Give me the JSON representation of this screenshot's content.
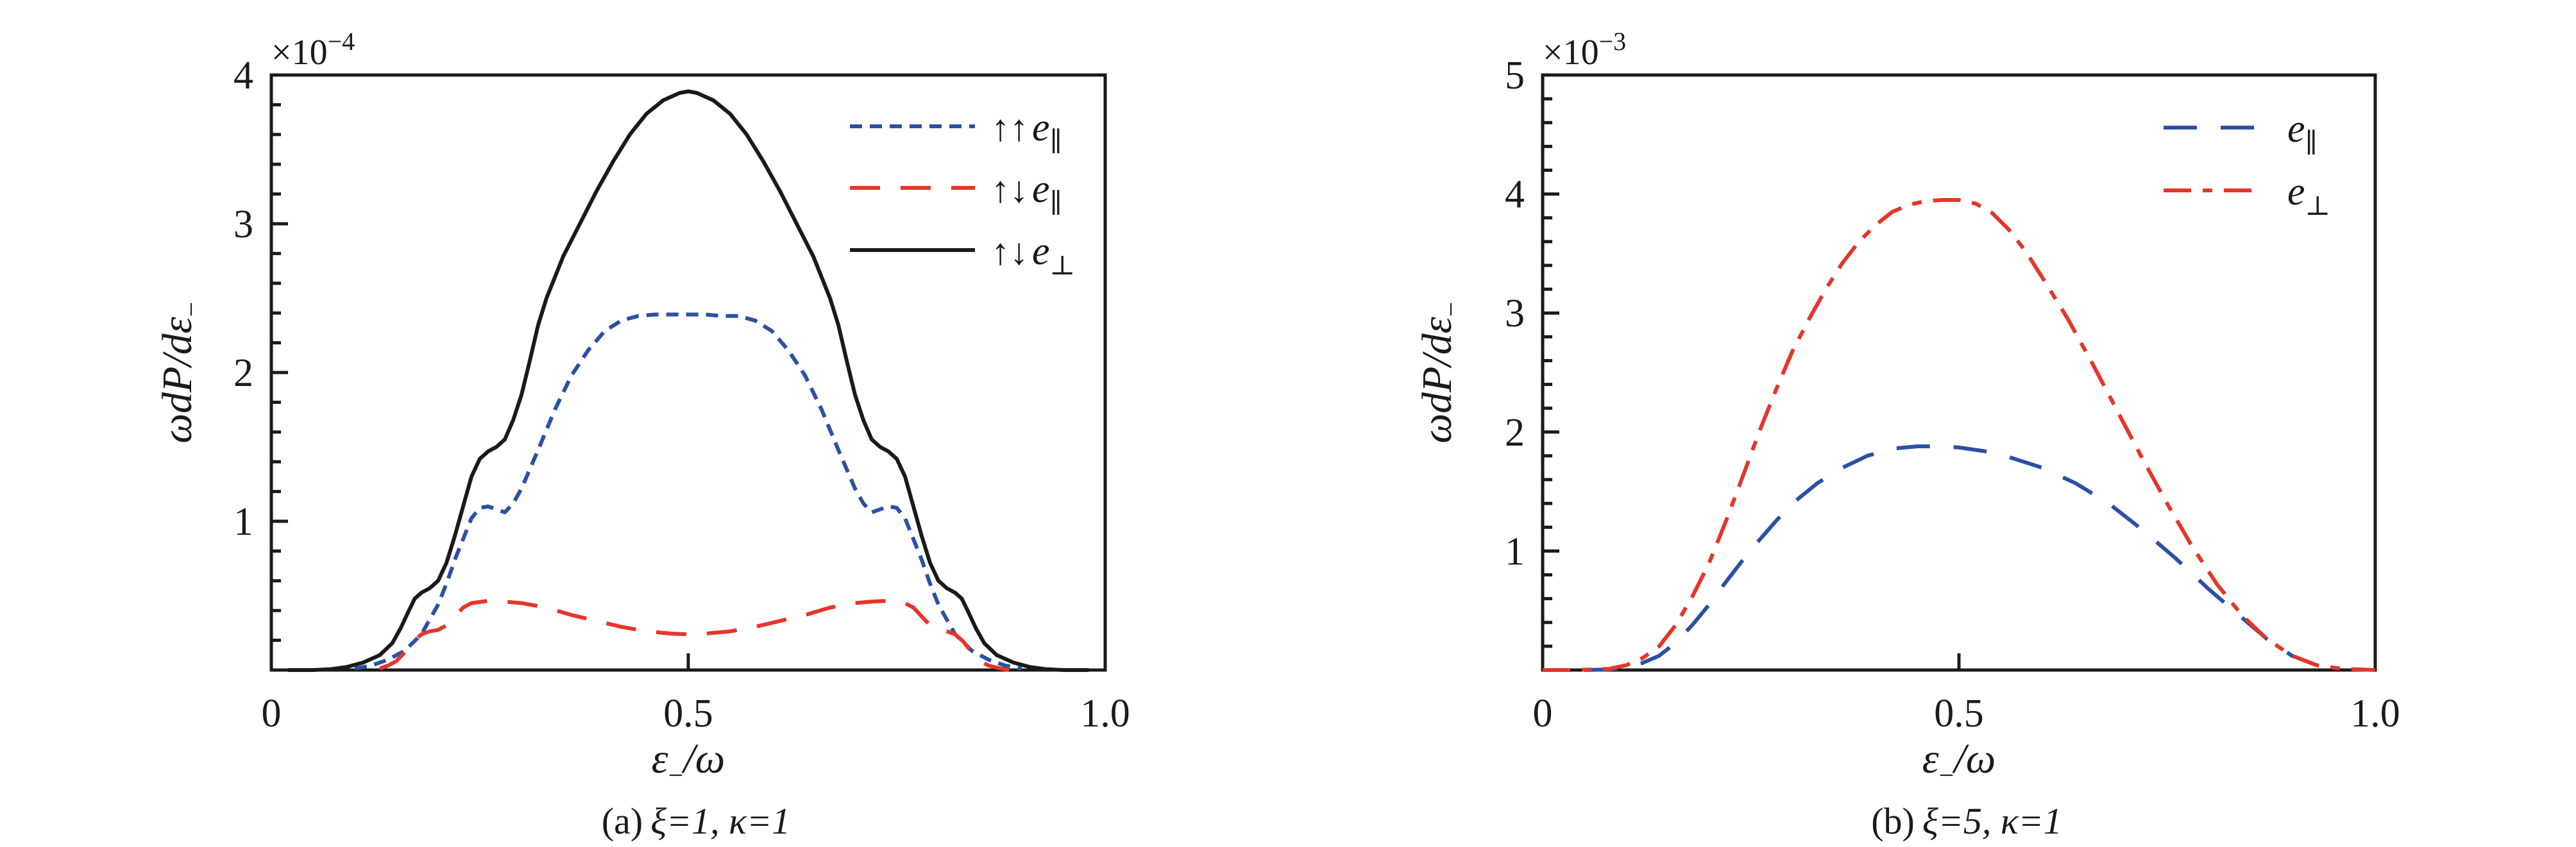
{
  "chart_data": [
    {
      "id": "a",
      "type": "line",
      "title": "",
      "offset_exponent": {
        "prefix": "×10",
        "exp": "−4"
      },
      "xlabel": {
        "base": "ε",
        "sub": "−",
        "rest": "/ω"
      },
      "ylabel": {
        "base": "ωdP/dε",
        "sub": "−"
      },
      "caption": {
        "prefix": "(a)",
        "math": "ξ=1, κ=1"
      },
      "xlim": [
        0,
        1
      ],
      "ylim": [
        0,
        4
      ],
      "grid": false,
      "legend_position": "upper right",
      "x_major_ticks": [
        {
          "v": 0,
          "label": "0"
        },
        {
          "v": 0.5,
          "label": "0.5"
        },
        {
          "v": 1.0,
          "label": "1.0"
        }
      ],
      "x_minor_ticks": [],
      "y_major_ticks": [
        {
          "v": 0,
          "label": ""
        },
        {
          "v": 1,
          "label": "1"
        },
        {
          "v": 2,
          "label": "2"
        },
        {
          "v": 3,
          "label": "3"
        },
        {
          "v": 4,
          "label": "4"
        }
      ],
      "y_minor_step": 0.2,
      "series": [
        {
          "key": "up-up-e-parallel",
          "legend": {
            "arrows": "↑↑",
            "base": "e",
            "sub": "∥"
          },
          "color": "#2b50a4",
          "dash": "19,12",
          "width": 6,
          "x": [
            0.1,
            0.12,
            0.14,
            0.16,
            0.18,
            0.2,
            0.21,
            0.22,
            0.23,
            0.24,
            0.25,
            0.26,
            0.27,
            0.28,
            0.29,
            0.3,
            0.32,
            0.34,
            0.36,
            0.38,
            0.4,
            0.42,
            0.44,
            0.46,
            0.48,
            0.5,
            0.52,
            0.54,
            0.56,
            0.58,
            0.6,
            0.62,
            0.64,
            0.66,
            0.68,
            0.7,
            0.71,
            0.72,
            0.73,
            0.74,
            0.75,
            0.76,
            0.77,
            0.78,
            0.79,
            0.8,
            0.82,
            0.84,
            0.86,
            0.88,
            0.9
          ],
          "y": [
            0.01,
            0.03,
            0.07,
            0.13,
            0.24,
            0.44,
            0.58,
            0.74,
            0.88,
            1.02,
            1.09,
            1.1,
            1.08,
            1.06,
            1.12,
            1.22,
            1.48,
            1.75,
            1.98,
            2.15,
            2.28,
            2.35,
            2.38,
            2.39,
            2.39,
            2.39,
            2.39,
            2.38,
            2.38,
            2.35,
            2.28,
            2.15,
            1.98,
            1.75,
            1.48,
            1.22,
            1.12,
            1.06,
            1.08,
            1.1,
            1.09,
            1.02,
            0.88,
            0.74,
            0.58,
            0.44,
            0.24,
            0.13,
            0.07,
            0.03,
            0.01
          ]
        },
        {
          "key": "up-down-e-parallel",
          "legend": {
            "arrows": "↑↓",
            "base": "e",
            "sub": "∥"
          },
          "color": "#e63529",
          "dash": "47,32",
          "width": 6,
          "x": [
            0.13,
            0.14,
            0.15,
            0.16,
            0.17,
            0.18,
            0.19,
            0.2,
            0.21,
            0.22,
            0.23,
            0.24,
            0.26,
            0.28,
            0.3,
            0.33,
            0.36,
            0.39,
            0.42,
            0.45,
            0.48,
            0.5,
            0.52,
            0.55,
            0.58,
            0.61,
            0.64,
            0.67,
            0.7,
            0.72,
            0.74,
            0.76,
            0.77,
            0.78,
            0.79,
            0.8,
            0.81,
            0.82,
            0.83,
            0.84,
            0.85,
            0.86,
            0.875,
            0.885
          ],
          "y": [
            0.01,
            0.03,
            0.06,
            0.12,
            0.19,
            0.24,
            0.26,
            0.27,
            0.3,
            0.36,
            0.42,
            0.45,
            0.465,
            0.46,
            0.45,
            0.42,
            0.37,
            0.33,
            0.29,
            0.26,
            0.245,
            0.24,
            0.245,
            0.26,
            0.29,
            0.33,
            0.37,
            0.42,
            0.45,
            0.46,
            0.465,
            0.45,
            0.42,
            0.36,
            0.3,
            0.27,
            0.26,
            0.24,
            0.19,
            0.12,
            0.06,
            0.03,
            0.01,
            0.0
          ]
        },
        {
          "key": "up-down-e-perp",
          "legend": {
            "arrows": "↑↓",
            "base": "e",
            "sub": "⊥"
          },
          "color": "#1a1a1a",
          "dash": "",
          "width": 6,
          "x": [
            0.02,
            0.05,
            0.07,
            0.09,
            0.11,
            0.13,
            0.145,
            0.155,
            0.165,
            0.172,
            0.18,
            0.19,
            0.2,
            0.21,
            0.22,
            0.23,
            0.24,
            0.25,
            0.26,
            0.27,
            0.28,
            0.29,
            0.3,
            0.31,
            0.32,
            0.33,
            0.35,
            0.37,
            0.39,
            0.41,
            0.43,
            0.45,
            0.47,
            0.49,
            0.5,
            0.51,
            0.53,
            0.55,
            0.57,
            0.59,
            0.61,
            0.63,
            0.65,
            0.67,
            0.68,
            0.69,
            0.7,
            0.71,
            0.72,
            0.73,
            0.74,
            0.75,
            0.76,
            0.77,
            0.78,
            0.79,
            0.8,
            0.81,
            0.82,
            0.828,
            0.835,
            0.845,
            0.855,
            0.87,
            0.89,
            0.91,
            0.93,
            0.95,
            0.98
          ],
          "y": [
            0.0,
            0.0,
            0.005,
            0.02,
            0.05,
            0.1,
            0.18,
            0.28,
            0.4,
            0.48,
            0.52,
            0.55,
            0.6,
            0.72,
            0.9,
            1.1,
            1.3,
            1.42,
            1.47,
            1.5,
            1.55,
            1.68,
            1.85,
            2.08,
            2.32,
            2.5,
            2.78,
            3.0,
            3.22,
            3.42,
            3.6,
            3.74,
            3.83,
            3.88,
            3.89,
            3.88,
            3.83,
            3.74,
            3.6,
            3.42,
            3.22,
            3.0,
            2.78,
            2.5,
            2.32,
            2.08,
            1.85,
            1.68,
            1.55,
            1.5,
            1.47,
            1.42,
            1.3,
            1.1,
            0.9,
            0.72,
            0.6,
            0.55,
            0.52,
            0.48,
            0.4,
            0.28,
            0.18,
            0.1,
            0.05,
            0.02,
            0.005,
            0.0,
            0.0
          ]
        }
      ]
    },
    {
      "id": "b",
      "type": "line",
      "title": "",
      "offset_exponent": {
        "prefix": "×10",
        "exp": "−3"
      },
      "xlabel": {
        "base": "ε",
        "sub": "−",
        "rest": "/ω"
      },
      "ylabel": {
        "base": "ωdP/dε",
        "sub": "−"
      },
      "caption": {
        "prefix": "(b)",
        "math": "ξ=5, κ=1"
      },
      "xlim": [
        0,
        1
      ],
      "ylim": [
        0,
        5
      ],
      "grid": false,
      "legend_position": "upper right",
      "x_major_ticks": [
        {
          "v": 0,
          "label": "0"
        },
        {
          "v": 0.5,
          "label": "0.5"
        },
        {
          "v": 1.0,
          "label": "1.0"
        }
      ],
      "x_minor_ticks": [],
      "y_major_ticks": [
        {
          "v": 0,
          "label": ""
        },
        {
          "v": 1,
          "label": "1"
        },
        {
          "v": 2,
          "label": "2"
        },
        {
          "v": 3,
          "label": "3"
        },
        {
          "v": 4,
          "label": "4"
        },
        {
          "v": 5,
          "label": "5"
        }
      ],
      "y_minor_step": 0.2,
      "series": [
        {
          "key": "e-parallel",
          "legend": {
            "arrows": "",
            "base": "e",
            "sub": "∥"
          },
          "color": "#2b50a4",
          "dash": "52,37",
          "width": 6,
          "x": [
            0.05,
            0.08,
            0.1,
            0.12,
            0.14,
            0.16,
            0.18,
            0.2,
            0.22,
            0.24,
            0.26,
            0.28,
            0.3,
            0.33,
            0.36,
            0.39,
            0.42,
            0.45,
            0.48,
            0.5,
            0.53,
            0.56,
            0.6,
            0.64,
            0.68,
            0.72,
            0.76,
            0.8,
            0.84,
            0.87,
            0.9,
            0.93,
            0.95
          ],
          "y": [
            0.0,
            0.005,
            0.02,
            0.06,
            0.12,
            0.23,
            0.38,
            0.55,
            0.74,
            0.92,
            1.09,
            1.25,
            1.4,
            1.57,
            1.7,
            1.8,
            1.86,
            1.88,
            1.88,
            1.87,
            1.84,
            1.79,
            1.7,
            1.57,
            1.4,
            1.18,
            0.94,
            0.68,
            0.44,
            0.26,
            0.12,
            0.04,
            0.01
          ]
        },
        {
          "key": "e-perp",
          "legend": {
            "arrows": "",
            "base": "e",
            "sub": "⊥"
          },
          "color": "#e63529",
          "dash": "43,18,15,18",
          "width": 6,
          "x": [
            0.0,
            0.04,
            0.08,
            0.1,
            0.12,
            0.14,
            0.16,
            0.18,
            0.2,
            0.22,
            0.24,
            0.26,
            0.28,
            0.3,
            0.32,
            0.34,
            0.36,
            0.38,
            0.4,
            0.42,
            0.44,
            0.46,
            0.48,
            0.5,
            0.52,
            0.54,
            0.56,
            0.58,
            0.6,
            0.63,
            0.66,
            0.69,
            0.72,
            0.75,
            0.78,
            0.81,
            0.84,
            0.87,
            0.9,
            0.93,
            0.96,
            1.0
          ],
          "y": [
            0.0,
            0.0,
            0.01,
            0.04,
            0.1,
            0.2,
            0.38,
            0.62,
            0.9,
            1.25,
            1.62,
            2.0,
            2.35,
            2.68,
            2.95,
            3.2,
            3.42,
            3.6,
            3.74,
            3.85,
            3.91,
            3.94,
            3.95,
            3.95,
            3.92,
            3.84,
            3.7,
            3.52,
            3.3,
            2.96,
            2.58,
            2.18,
            1.78,
            1.4,
            1.04,
            0.72,
            0.46,
            0.26,
            0.12,
            0.04,
            0.01,
            0.0
          ]
        }
      ]
    }
  ]
}
